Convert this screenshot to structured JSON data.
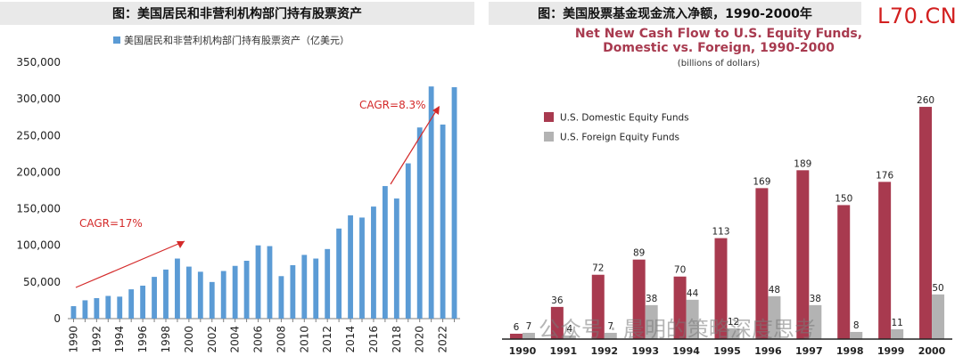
{
  "left_caption": "图：美国居民和非营利机构部门持有股票资产",
  "right_caption": "图：美国股票基金现金流入净额，1990-2000年",
  "watermark_site": "L70.CN",
  "watermark_wechat": "公众号 · 晨明的策略深度思考",
  "colors": {
    "left_bar": "#5b9bd5",
    "domestic": "#a83a4f",
    "foreign": "#b3b3b3",
    "arrow": "#d42a2a",
    "right_title": "#a83a4f"
  },
  "chart_data": [
    {
      "type": "bar",
      "legend": "美国居民和非营利机构部门持有股票资产（亿美元）",
      "x": [
        1990,
        1991,
        1992,
        1993,
        1994,
        1995,
        1996,
        1997,
        1998,
        1999,
        2000,
        2001,
        2002,
        2003,
        2004,
        2005,
        2006,
        2007,
        2008,
        2009,
        2010,
        2011,
        2012,
        2013,
        2014,
        2015,
        2016,
        2017,
        2018,
        2019,
        2020,
        2021,
        2022,
        2023
      ],
      "values": [
        17000,
        25000,
        28000,
        31000,
        30000,
        40000,
        45000,
        57000,
        67000,
        82000,
        71000,
        64000,
        50000,
        65000,
        72000,
        79000,
        100000,
        99000,
        58000,
        73000,
        87000,
        82000,
        95000,
        123000,
        141000,
        138000,
        153000,
        181000,
        164000,
        212000,
        261000,
        317000,
        265000,
        316000
      ],
      "x_tick_labels": [
        "1990",
        "1992",
        "1994",
        "1996",
        "1998",
        "2000",
        "2002",
        "2004",
        "2006",
        "2008",
        "2010",
        "2012",
        "2014",
        "2016",
        "2018",
        "2020",
        "2022"
      ],
      "y_tick_labels": [
        "0",
        "50,000",
        "100,000",
        "150,000",
        "200,000",
        "250,000",
        "300,000",
        "350,000"
      ],
      "ylim": [
        0,
        350000
      ],
      "annotations": [
        "CAGR=17%",
        "CAGR=8.3%"
      ]
    },
    {
      "type": "bar",
      "title_line1": "Net New Cash Flow to U.S. Equity Funds,",
      "title_line2": "Domestic vs. Foreign, 1990-2000",
      "subtitle": "(billions of dollars)",
      "categories": [
        "1990",
        "1991",
        "1992",
        "1993",
        "1994",
        "1995",
        "1996",
        "1997",
        "1998",
        "1999",
        "2000"
      ],
      "series": [
        {
          "name": "U.S. Domestic Equity Funds",
          "values": [
            6,
            36,
            72,
            89,
            70,
            113,
            169,
            189,
            150,
            176,
            260
          ],
          "labels": [
            "6",
            "36",
            "72",
            "89",
            "70",
            "113",
            "169",
            "189",
            "150",
            "176",
            "260"
          ]
        },
        {
          "name": "U.S. Foreign Equity Funds",
          "values": [
            7,
            4,
            7,
            38,
            44,
            12,
            48,
            38,
            8,
            11,
            50
          ],
          "labels": [
            "7",
            "4",
            "7",
            "38",
            "44",
            "12",
            "48",
            "38",
            "8",
            "11",
            "50"
          ]
        }
      ],
      "ylim": [
        0,
        275
      ]
    }
  ]
}
